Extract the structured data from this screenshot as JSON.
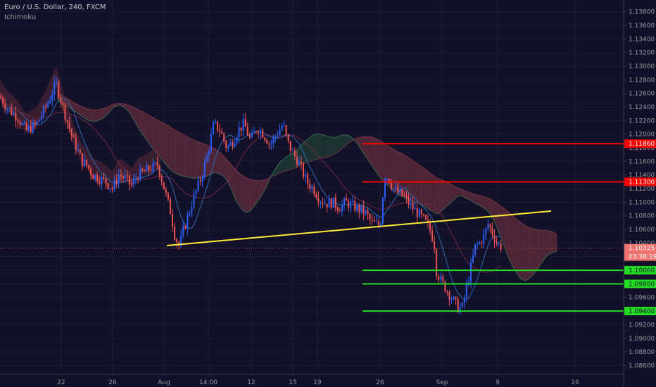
{
  "header": {
    "symbol": "Euro / U.S. Dollar, 240, FXCM",
    "indicator": "Ichimoku"
  },
  "chart_data": {
    "type": "candlestick",
    "ylim": [
      1.0847,
      1.139
    ],
    "y_ticks": [
      "1.13800",
      "1.13600",
      "1.13400",
      "1.13200",
      "1.13000",
      "1.12800",
      "1.12600",
      "1.12400",
      "1.12200",
      "1.12000",
      "1.11800",
      "1.11600",
      "1.11400",
      "1.11200",
      "1.11000",
      "1.10800",
      "1.10600",
      "1.10400",
      "1.10200",
      "1.10000",
      "1.09800",
      "1.09600",
      "1.09400",
      "1.09200",
      "1.09000",
      "1.08800",
      "1.08600"
    ],
    "x_ticks": [
      "22",
      "26",
      "Aug",
      "14:00",
      "12",
      "15",
      "19",
      "26",
      "Sep",
      "9",
      "16"
    ],
    "current_price": "1.10325",
    "countdown": "03:38:19",
    "colors": {
      "background": "#131129",
      "up": "#2962ff",
      "down": "#ef5350",
      "cloud_bear": "#5a2a3a",
      "cloud_bull": "#1f3a32",
      "resistance": "#ff0000",
      "support": "#22dd22",
      "trendline": "#ffee33"
    },
    "horizontal_levels": [
      {
        "label": "1.11860",
        "price": 1.1186,
        "kind": "resistance"
      },
      {
        "label": "1.11300",
        "price": 1.113,
        "kind": "resistance"
      },
      {
        "label": "1.10000",
        "price": 1.1,
        "kind": "support"
      },
      {
        "label": "1.09800",
        "price": 1.098,
        "kind": "support"
      },
      {
        "label": "1.09400",
        "price": 1.094,
        "kind": "support"
      }
    ],
    "trendline": [
      {
        "x": 1.08,
        "y": 1.1032
      },
      {
        "x": 16.7,
        "y": 1.1079
      }
    ],
    "price_path": [
      [
        -4.0,
        1.1255
      ],
      [
        -3.7,
        1.124
      ],
      [
        -3.2,
        1.1225
      ],
      [
        -2.8,
        1.1205
      ],
      [
        -2.3,
        1.1215
      ],
      [
        -1.8,
        1.1245
      ],
      [
        -1.4,
        1.1275
      ],
      [
        -1.0,
        1.123
      ],
      [
        -0.6,
        1.119
      ],
      [
        -0.2,
        1.116
      ],
      [
        0.0,
        1.1155
      ],
      [
        0.3,
        1.114
      ],
      [
        0.6,
        1.1135
      ],
      [
        0.9,
        1.113
      ],
      [
        1.2,
        1.112
      ],
      [
        1.5,
        1.114
      ],
      [
        1.8,
        1.1135
      ],
      [
        2.1,
        1.1125
      ],
      [
        2.4,
        1.114
      ],
      [
        2.7,
        1.1145
      ],
      [
        3.0,
        1.115
      ],
      [
        3.3,
        1.1155
      ],
      [
        3.6,
        1.112
      ],
      [
        3.9,
        1.1085
      ],
      [
        4.1,
        1.105
      ],
      [
        4.3,
        1.1035
      ],
      [
        4.5,
        1.106
      ],
      [
        4.8,
        1.109
      ],
      [
        5.0,
        1.111
      ],
      [
        5.3,
        1.1135
      ],
      [
        5.6,
        1.117
      ],
      [
        5.9,
        1.1215
      ],
      [
        6.2,
        1.1205
      ],
      [
        6.5,
        1.118
      ],
      [
        6.8,
        1.119
      ],
      [
        7.0,
        1.1205
      ],
      [
        7.3,
        1.1215
      ],
      [
        7.6,
        1.119
      ],
      [
        7.9,
        1.121
      ],
      [
        8.2,
        1.12
      ],
      [
        8.5,
        1.1185
      ],
      [
        8.8,
        1.12
      ],
      [
        9.1,
        1.1215
      ],
      [
        9.3,
        1.119
      ],
      [
        9.5,
        1.1175
      ],
      [
        9.8,
        1.116
      ],
      [
        10.0,
        1.1145
      ],
      [
        10.2,
        1.113
      ],
      [
        10.5,
        1.112
      ],
      [
        10.8,
        1.1105
      ],
      [
        11.1,
        1.1098
      ],
      [
        11.4,
        1.11
      ],
      [
        11.7,
        1.1092
      ],
      [
        12.0,
        1.11
      ],
      [
        12.3,
        1.1095
      ],
      [
        12.6,
        1.109
      ],
      [
        12.9,
        1.1085
      ],
      [
        13.2,
        1.107
      ],
      [
        13.6,
        1.1065
      ],
      [
        13.8,
        1.114
      ],
      [
        14.0,
        1.1135
      ],
      [
        14.2,
        1.112
      ],
      [
        14.4,
        1.1115
      ],
      [
        14.7,
        1.1108
      ],
      [
        15.0,
        1.1095
      ],
      [
        15.3,
        1.1085
      ],
      [
        15.6,
        1.1075
      ],
      [
        15.9,
        1.106
      ],
      [
        16.1,
        1.104
      ],
      [
        16.2,
        1.1
      ],
      [
        16.4,
        1.0985
      ],
      [
        16.6,
        1.0975
      ],
      [
        16.8,
        1.0965
      ],
      [
        17.0,
        1.0955
      ],
      [
        17.2,
        1.0945
      ],
      [
        17.4,
        1.0945
      ],
      [
        17.6,
        1.0975
      ],
      [
        17.8,
        1.1005
      ],
      [
        18.0,
        1.1035
      ],
      [
        18.2,
        1.104
      ],
      [
        18.4,
        1.105
      ],
      [
        18.6,
        1.1068
      ],
      [
        18.8,
        1.1055
      ],
      [
        19.0,
        1.104
      ],
      [
        19.2,
        1.1035
      ]
    ]
  }
}
